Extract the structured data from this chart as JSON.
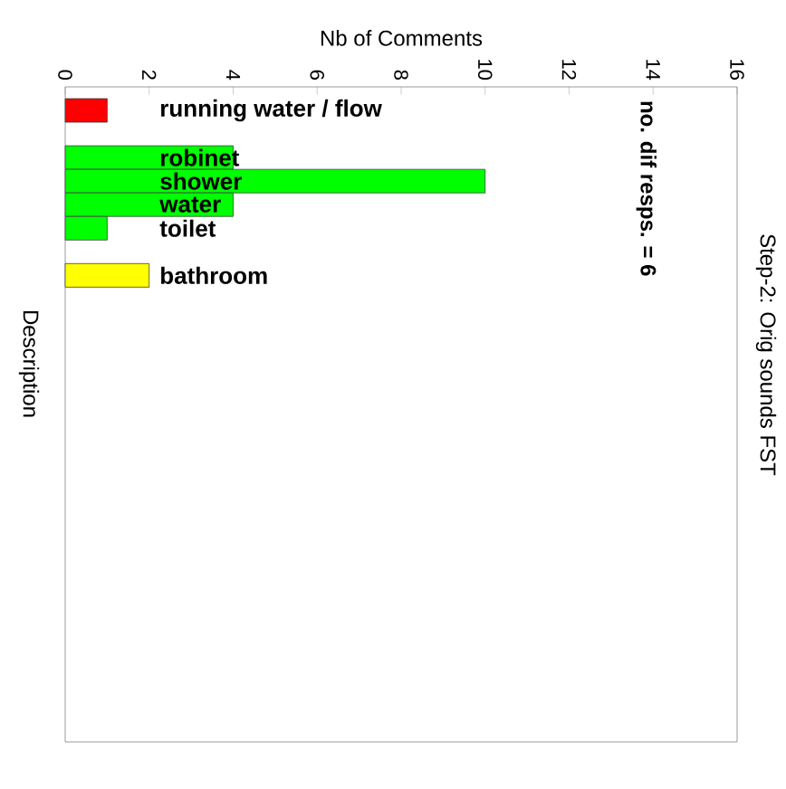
{
  "chart_data": {
    "type": "bar",
    "orientation": "horizontal",
    "title": "Step-2: Orig sounds FST",
    "xlabel": "Nb of Comments",
    "ylabel": "Description",
    "annotations": [
      "no. dif resps. = 6"
    ],
    "categories": [
      "running water / flow",
      null,
      "robinet",
      "shower",
      "water",
      "toilet",
      null,
      "bathroom"
    ],
    "values": [
      1,
      null,
      4,
      10,
      4,
      1,
      null,
      2
    ],
    "colors": [
      "#ff0000",
      null,
      "#00ff00",
      "#00ff00",
      "#00ff00",
      "#00ff00",
      null,
      "#ffff00"
    ],
    "xlim": [
      0,
      16
    ],
    "xticks": [
      0,
      2,
      4,
      6,
      8,
      10,
      12,
      14,
      16
    ]
  }
}
